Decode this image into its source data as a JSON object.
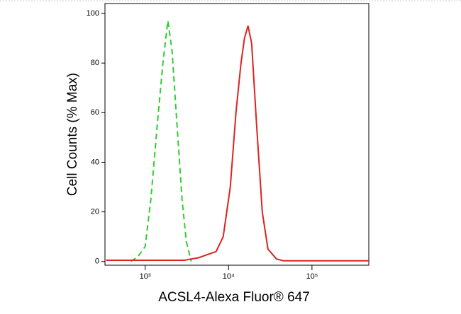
{
  "chart_data": {
    "type": "line",
    "x_label": "ACSL4-Alexa Fluor® 647",
    "y_label": "Cell Counts (% Max)",
    "xscale": "log",
    "xlim": [
      330,
      480000
    ],
    "ylim": [
      -1.5,
      104
    ],
    "xticks": [
      {
        "value": 1000,
        "label": "10³"
      },
      {
        "value": 10000,
        "label": "10⁴"
      },
      {
        "value": 100000,
        "label": "10⁵"
      }
    ],
    "yticks": [
      0,
      20,
      40,
      60,
      80,
      100
    ],
    "series": [
      {
        "color": "#33cc33",
        "dash": true,
        "x": [
          676,
          822,
          1000,
          1170,
          1396,
          1633,
          1872,
          2104,
          2414,
          2771,
          3118,
          3573
        ],
        "values": [
          0,
          2,
          6,
          25,
          55,
          80,
          97,
          85,
          55,
          25,
          8,
          0
        ]
      },
      {
        "color": "#dd2222",
        "dash": false,
        "x": [
          340,
          2940,
          4346,
          5834,
          7096,
          8630,
          10500,
          12270,
          14090,
          15530,
          17130,
          18900,
          21700,
          25370,
          29660,
          37500,
          45700,
          480000
        ],
        "values": [
          0.5,
          0.5,
          1.5,
          3,
          4,
          10,
          30,
          60,
          80,
          90,
          95,
          88,
          55,
          20,
          5,
          1,
          0.3,
          0.3
        ]
      }
    ]
  }
}
